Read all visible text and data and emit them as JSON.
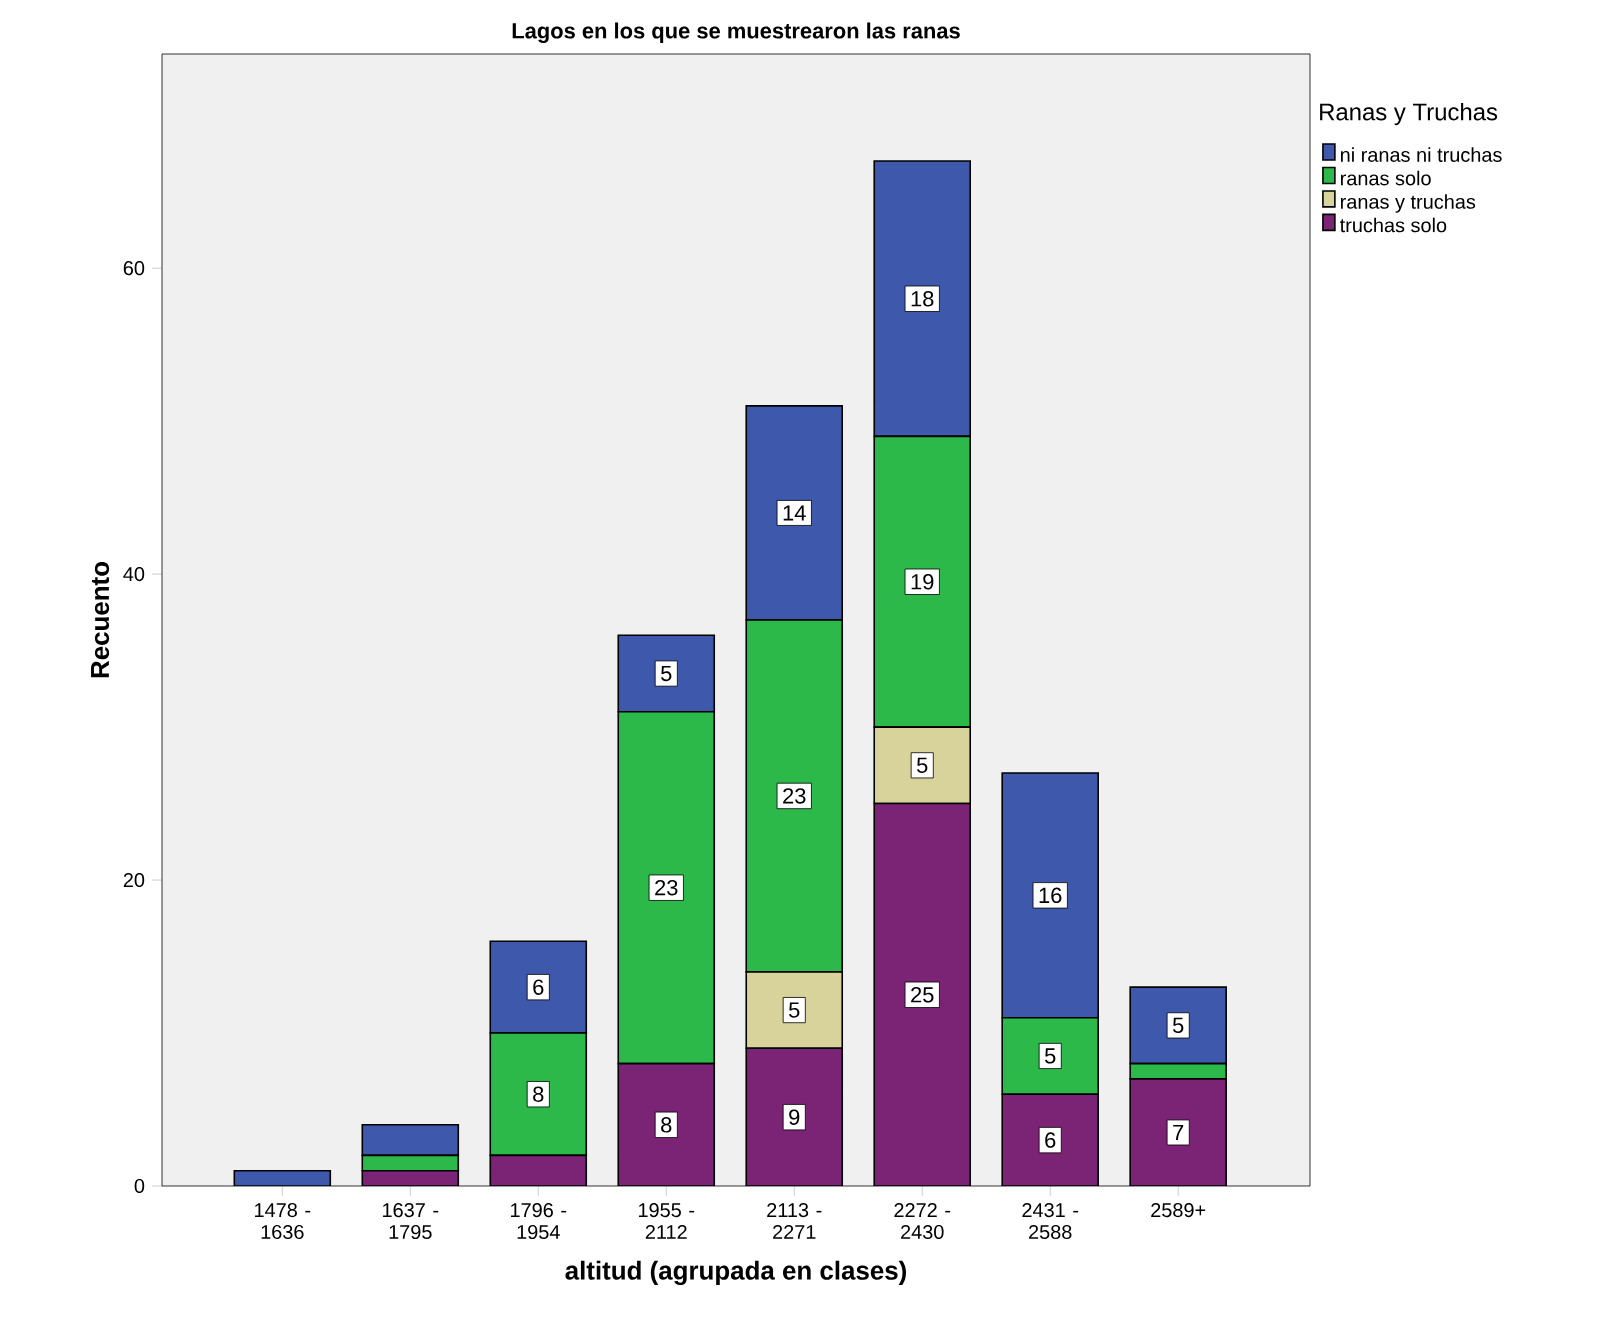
{
  "chart_data": {
    "type": "bar",
    "stacked": true,
    "title": "Lagos en los que se muestrearon las ranas",
    "xlabel": "altitud (agrupada en clases)",
    "ylabel": "Recuento",
    "legend_title": "Ranas y Truchas",
    "categories": [
      "1478 - 1636",
      "1637 - 1795",
      "1796 - 1954",
      "1955 - 2112",
      "2113 - 2271",
      "2272 - 2430",
      "2431 - 2588",
      "2589+"
    ],
    "series": [
      {
        "name": "truchas solo",
        "color": "#7b2476",
        "values": [
          0,
          1,
          2,
          8,
          9,
          25,
          6,
          7
        ],
        "value_labels": [
          null,
          null,
          null,
          "8",
          "9",
          "25",
          "6",
          "7"
        ]
      },
      {
        "name": "ranas y truchas",
        "color": "#d8d39a",
        "values": [
          0,
          0,
          0,
          0,
          5,
          5,
          0,
          0
        ],
        "value_labels": [
          null,
          null,
          null,
          null,
          "5",
          "5",
          null,
          null
        ]
      },
      {
        "name": "ranas solo",
        "color": "#2db84a",
        "values": [
          0,
          1,
          8,
          23,
          23,
          19,
          5,
          1
        ],
        "value_labels": [
          null,
          null,
          "8",
          "23",
          "23",
          "19",
          "5",
          null
        ]
      },
      {
        "name": "ni ranas ni truchas",
        "color": "#3e58ac",
        "values": [
          1,
          2,
          6,
          5,
          14,
          18,
          16,
          5
        ],
        "value_labels": [
          null,
          null,
          "6",
          "5",
          "14",
          "18",
          "16",
          "5"
        ]
      }
    ],
    "ylim": [
      0,
      74
    ],
    "yticks": [
      0,
      20,
      40,
      60
    ],
    "grid": false,
    "legend": "right"
  }
}
